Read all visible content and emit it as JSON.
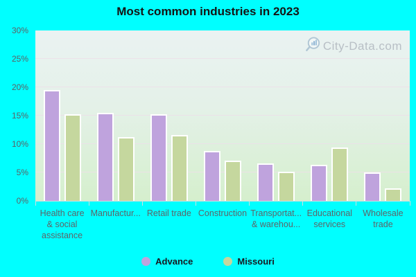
{
  "title": "Most common industries in 2023",
  "watermark": "City-Data.com",
  "colors": {
    "page_background": "#00ffff",
    "advance_bar": "#bfa3dd",
    "missouri_bar": "#c5d79e",
    "bar_border": "#ffffff",
    "plot_gradient_top": "#eaf2f2",
    "plot_gradient_bottom": "#d5efcd",
    "gridline": "#ecdfe9",
    "axis_text": "#5e6468",
    "title_text": "#141414",
    "legend_text": "#17171f",
    "watermark_text": "#b3bac1"
  },
  "chart_data": {
    "type": "bar",
    "title": "Most common industries in 2023",
    "categories": [
      "Health care\n& social\nassistance",
      "Manufactur...",
      "Retail trade",
      "Construction",
      "Transportat...\n& warehou...",
      "Educational\nservices",
      "Wholesale\ntrade"
    ],
    "series": [
      {
        "name": "Advance",
        "color": "#bfa3dd",
        "values": [
          19.3,
          15.2,
          15.0,
          8.5,
          6.3,
          6.1,
          4.8
        ]
      },
      {
        "name": "Missouri",
        "color": "#c5d79e",
        "values": [
          15.0,
          11.0,
          11.4,
          6.8,
          4.9,
          9.2,
          2.0
        ]
      }
    ],
    "xlabel": "",
    "ylabel": "",
    "ylim": [
      0,
      30
    ],
    "yticks": [
      0,
      5,
      10,
      15,
      20,
      25,
      30
    ],
    "ytick_labels": [
      "0%",
      "5%",
      "10%",
      "15%",
      "20%",
      "25%",
      "30%"
    ],
    "grid": true,
    "legend_position": "bottom"
  }
}
